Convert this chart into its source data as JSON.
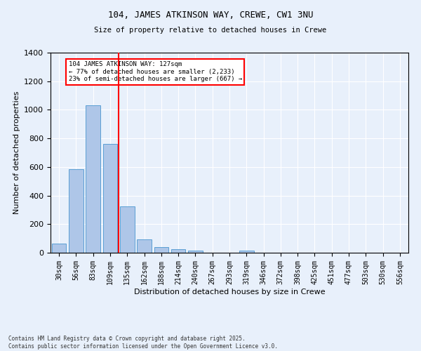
{
  "title1": "104, JAMES ATKINSON WAY, CREWE, CW1 3NU",
  "title2": "Size of property relative to detached houses in Crewe",
  "xlabel": "Distribution of detached houses by size in Crewe",
  "ylabel": "Number of detached properties",
  "bar_labels": [
    "30sqm",
    "56sqm",
    "83sqm",
    "109sqm",
    "135sqm",
    "162sqm",
    "188sqm",
    "214sqm",
    "240sqm",
    "267sqm",
    "293sqm",
    "319sqm",
    "346sqm",
    "372sqm",
    "398sqm",
    "425sqm",
    "451sqm",
    "477sqm",
    "503sqm",
    "530sqm",
    "556sqm"
  ],
  "bar_values": [
    65,
    585,
    1030,
    762,
    325,
    95,
    38,
    25,
    15,
    0,
    0,
    15,
    0,
    0,
    0,
    0,
    0,
    0,
    0,
    0,
    0
  ],
  "bar_color": "#aec6e8",
  "bar_edge_color": "#5a9fd4",
  "vline_color": "red",
  "vline_x": 3.5,
  "annotation_text": "104 JAMES ATKINSON WAY: 127sqm\n← 77% of detached houses are smaller (2,233)\n23% of semi-detached houses are larger (667) →",
  "annotation_box_color": "white",
  "annotation_box_edge": "red",
  "ylim": [
    0,
    1400
  ],
  "yticks": [
    0,
    200,
    400,
    600,
    800,
    1000,
    1200,
    1400
  ],
  "background_color": "#e8f0fb",
  "grid_color": "#ffffff",
  "footnote": "Contains HM Land Registry data © Crown copyright and database right 2025.\nContains public sector information licensed under the Open Government Licence v3.0."
}
